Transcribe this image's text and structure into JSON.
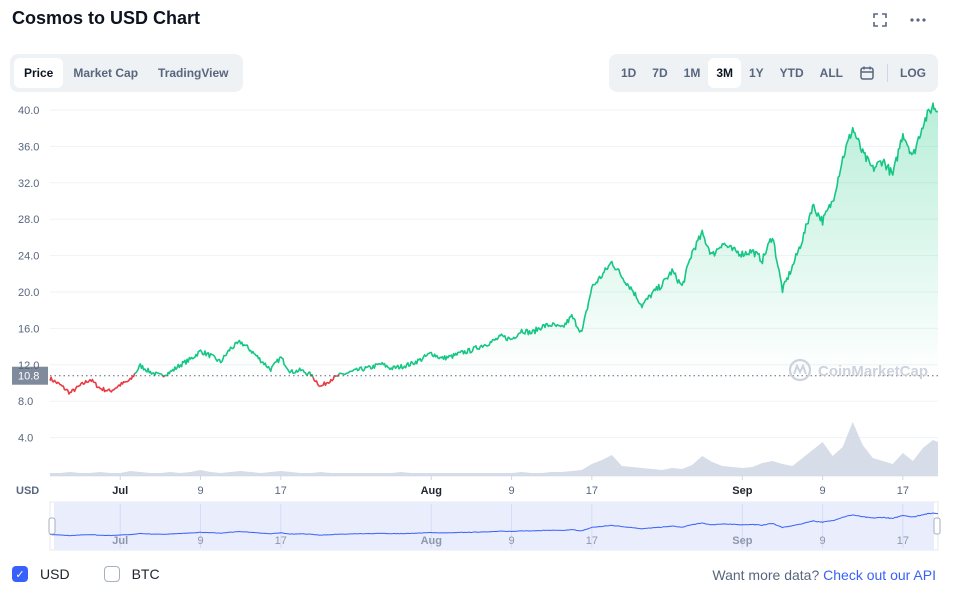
{
  "header": {
    "title": "Cosmos to USD Chart",
    "fullscreen_icon": "expand-icon",
    "more_icon": "ellipsis-icon"
  },
  "tabs_left": [
    {
      "label": "Price",
      "active": true
    },
    {
      "label": "Market Cap",
      "active": false
    },
    {
      "label": "TradingView",
      "active": false
    }
  ],
  "ranges": [
    {
      "label": "1D",
      "active": false
    },
    {
      "label": "7D",
      "active": false
    },
    {
      "label": "1M",
      "active": false
    },
    {
      "label": "3M",
      "active": true
    },
    {
      "label": "1Y",
      "active": false
    },
    {
      "label": "YTD",
      "active": false
    },
    {
      "label": "ALL",
      "active": false
    }
  ],
  "calendar_icon": "calendar-icon",
  "log_label": "LOG",
  "chart_data": {
    "type": "line",
    "y_ticks": [
      "40.0",
      "36.0",
      "32.0",
      "28.0",
      "24.0",
      "20.0",
      "16.0",
      "12.0",
      "8.0",
      "4.0"
    ],
    "ylim": [
      0,
      42
    ],
    "reference_value": 10.8,
    "reference_label": "10.8",
    "x_ticks": [
      "Jul",
      "9",
      "17",
      "Aug",
      "9",
      "17",
      "Sep",
      "9",
      "17"
    ],
    "x_tick_days": [
      7,
      15,
      23,
      38,
      46,
      54,
      69,
      77,
      85
    ],
    "xlim": [
      0,
      88.5
    ],
    "x_unit_label": "USD",
    "watermark": "CoinMarketCap",
    "colors": {
      "up": "#16c784",
      "down": "#ea3943",
      "volume": "#cfd6e4",
      "navigator": "#3861fb"
    },
    "series": [
      {
        "day": [
          0,
          1,
          2,
          3,
          4,
          5,
          6,
          7,
          8,
          9,
          10,
          11,
          12,
          13,
          14,
          15,
          16,
          17,
          18,
          19,
          20,
          21,
          22,
          23,
          24,
          25,
          26,
          27,
          28,
          29,
          30,
          31,
          32,
          33,
          34,
          35,
          36,
          37,
          38,
          39,
          40,
          41,
          42,
          43,
          44,
          45,
          46,
          47,
          48,
          49,
          50,
          51,
          52,
          53,
          54,
          55,
          56,
          57,
          58,
          59,
          60,
          61,
          62,
          63,
          64,
          65,
          66,
          67,
          68,
          69,
          70,
          71,
          72,
          73,
          74,
          75,
          76,
          77,
          78,
          79,
          80,
          81,
          82,
          83,
          84,
          85,
          86,
          87,
          88,
          88.5
        ],
        "price": [
          10.5,
          9.8,
          8.9,
          9.7,
          10.4,
          9.4,
          9.1,
          9.8,
          10.3,
          11.9,
          11.2,
          10.8,
          11.2,
          12.0,
          12.6,
          13.5,
          13.0,
          12.3,
          13.8,
          14.5,
          13.6,
          12.5,
          11.5,
          12.8,
          11.2,
          11.4,
          10.9,
          9.6,
          10.4,
          10.9,
          11.2,
          11.5,
          11.7,
          12.1,
          11.6,
          11.8,
          12.1,
          12.6,
          13.3,
          12.7,
          12.9,
          13.3,
          13.6,
          14.1,
          14.5,
          15.1,
          14.8,
          15.8,
          15.5,
          16.2,
          16.4,
          16.0,
          17.3,
          15.5,
          20.5,
          21.8,
          23.3,
          21.7,
          20.3,
          18.5,
          19.8,
          20.8,
          22.3,
          20.6,
          24.4,
          26.4,
          24.0,
          25.4,
          24.6,
          24.2,
          24.5,
          23.5,
          26.2,
          20.2,
          22.8,
          25.8,
          29.5,
          27.8,
          30.0,
          34.7,
          38.0,
          35.2,
          33.5,
          34.5,
          32.8,
          37.5,
          34.9,
          38.5,
          40.5,
          39.8
        ],
        "volume": [
          0.3,
          0.3,
          0.4,
          0.3,
          0.3,
          0.4,
          0.3,
          0.3,
          0.5,
          0.4,
          0.3,
          0.3,
          0.4,
          0.3,
          0.4,
          0.6,
          0.4,
          0.3,
          0.4,
          0.5,
          0.4,
          0.3,
          0.4,
          0.5,
          0.4,
          0.3,
          0.3,
          0.4,
          0.3,
          0.3,
          0.3,
          0.3,
          0.3,
          0.3,
          0.3,
          0.4,
          0.3,
          0.3,
          0.3,
          0.3,
          0.3,
          0.3,
          0.3,
          0.3,
          0.3,
          0.3,
          0.3,
          0.4,
          0.3,
          0.3,
          0.4,
          0.4,
          0.5,
          0.6,
          1.2,
          1.6,
          2.1,
          1.0,
          0.9,
          0.8,
          0.7,
          0.6,
          0.8,
          0.7,
          1.1,
          2.0,
          1.4,
          1.0,
          0.9,
          0.8,
          0.9,
          1.3,
          1.5,
          1.2,
          1.0,
          1.8,
          2.6,
          3.4,
          2.0,
          2.9,
          5.4,
          3.1,
          1.8,
          1.5,
          1.2,
          2.3,
          1.5,
          2.8,
          3.6,
          3.4
        ]
      }
    ],
    "navigator": {
      "x_ticks": [
        "Jul",
        "9",
        "17",
        "Aug",
        "9",
        "17",
        "Sep",
        "9",
        "17"
      ]
    }
  },
  "footer": {
    "usd_label": "USD",
    "btc_label": "BTC",
    "more_prefix": "Want more data?",
    "more_link": "Check out our API"
  }
}
